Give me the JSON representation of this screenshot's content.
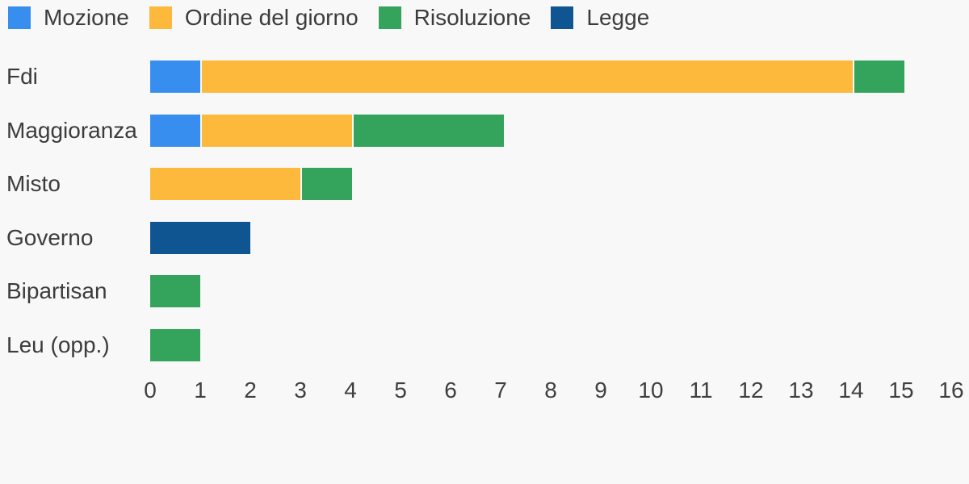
{
  "background_color": "#f8f8f8",
  "text_color": "#3c3c3c",
  "legend": {
    "position": "top-left",
    "items": [
      {
        "label": "Mozione",
        "color": "#388eef"
      },
      {
        "label": "Ordine del giorno",
        "color": "#fcb93b"
      },
      {
        "label": "Risoluzione",
        "color": "#34a45c"
      },
      {
        "label": "Legge",
        "color": "#0e5591"
      }
    ]
  },
  "chart_data": {
    "type": "bar",
    "orientation": "horizontal",
    "stacked": true,
    "title": "",
    "xlabel": "",
    "ylabel": "",
    "grid": false,
    "legend_position": "top",
    "categories": [
      "Fdi",
      "Maggioranza",
      "Misto",
      "Governo",
      "Bipartisan",
      "Leu (opp.)"
    ],
    "series": [
      {
        "name": "Mozione",
        "color": "#388eef",
        "values": [
          1,
          1,
          0,
          0,
          0,
          0
        ]
      },
      {
        "name": "Ordine del giorno",
        "color": "#fcb93b",
        "values": [
          13,
          3,
          3,
          0,
          0,
          0
        ]
      },
      {
        "name": "Risoluzione",
        "color": "#34a45c",
        "values": [
          1,
          3,
          1,
          0,
          1,
          1
        ]
      },
      {
        "name": "Legge",
        "color": "#0e5591",
        "values": [
          0,
          0,
          0,
          2,
          0,
          0
        ]
      }
    ],
    "xlim": [
      0,
      16
    ],
    "xticks": [
      0,
      1,
      2,
      3,
      4,
      5,
      6,
      7,
      8,
      9,
      10,
      11,
      12,
      13,
      14,
      15,
      16
    ]
  }
}
